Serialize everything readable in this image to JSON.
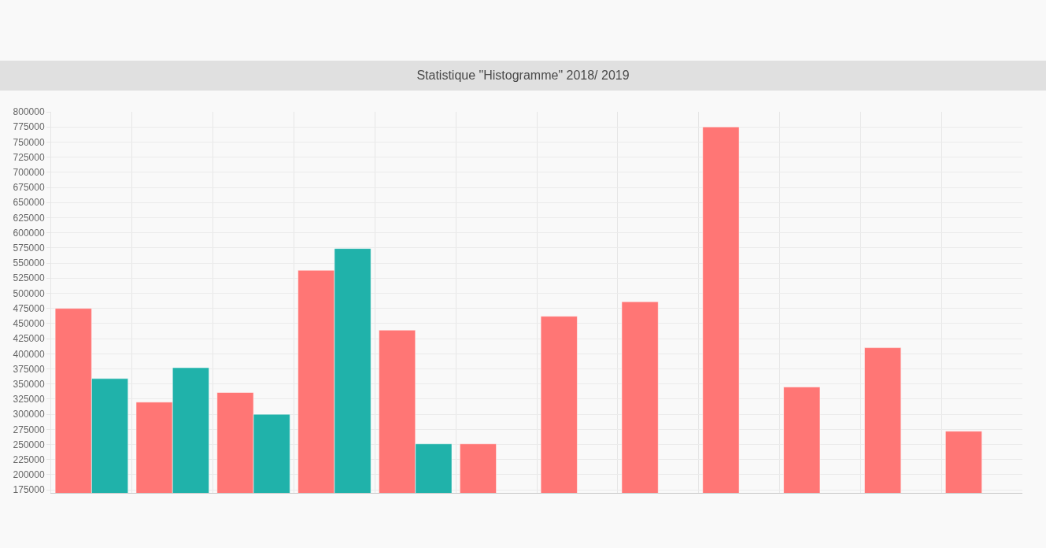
{
  "chart_data": {
    "type": "bar",
    "title": "Statistique \"Histogramme\" 2018/ 2019",
    "categories": [
      null,
      null,
      null,
      null,
      null,
      null,
      null,
      null,
      null,
      null,
      null,
      null
    ],
    "series": [
      {
        "color": "#ff7675",
        "values": [
          475000,
          320000,
          336000,
          538000,
          439000,
          251000,
          462000,
          486000,
          775000,
          345000,
          410000,
          272000
        ]
      },
      {
        "color": "#20b2aa",
        "values": [
          359000,
          377000,
          300000,
          574000,
          251000,
          null,
          null,
          null,
          null,
          null,
          null,
          null
        ]
      }
    ],
    "ylim": [
      170000,
      800000
    ],
    "yticks": [
      175000,
      200000,
      225000,
      250000,
      275000,
      300000,
      325000,
      350000,
      375000,
      400000,
      425000,
      450000,
      475000,
      500000,
      525000,
      550000,
      575000,
      600000,
      625000,
      650000,
      675000,
      700000,
      725000,
      750000,
      775000,
      800000
    ],
    "grid": true,
    "tick_labels": "y"
  }
}
